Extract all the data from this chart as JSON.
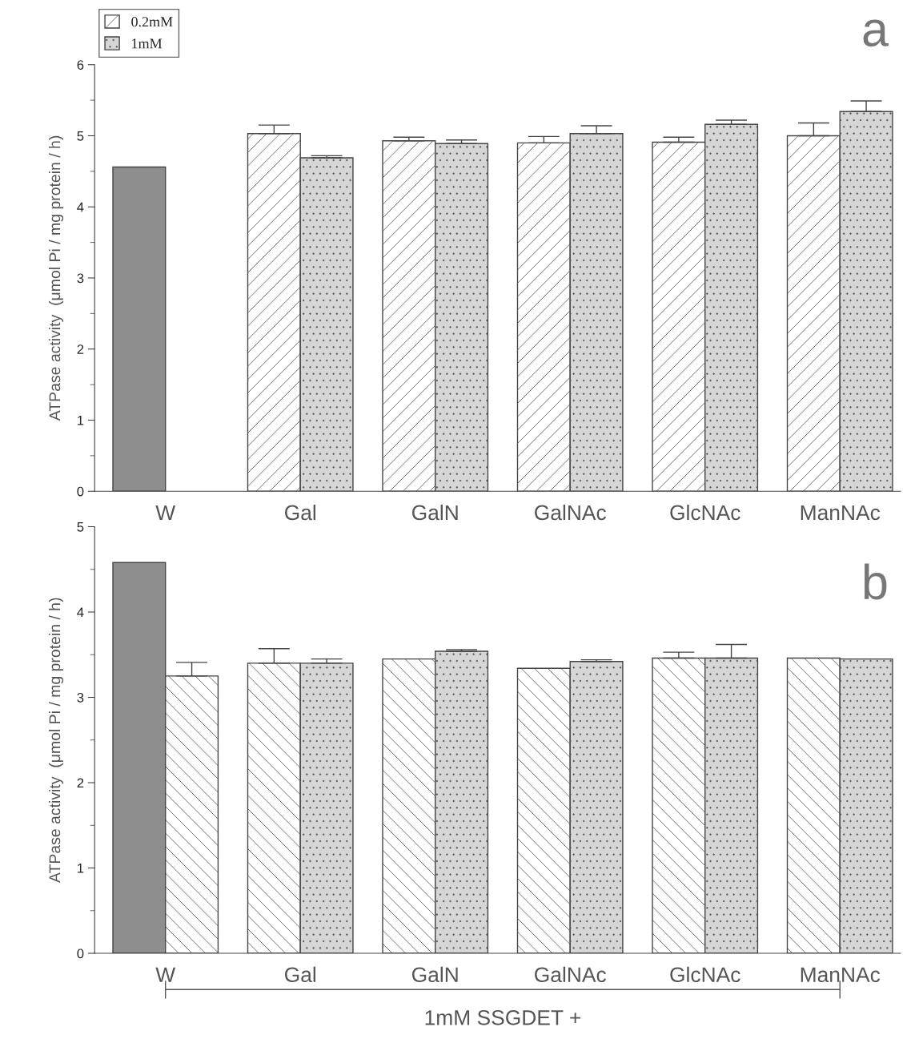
{
  "chart_data": [
    {
      "type": "bar",
      "categories": [
        "W",
        "Gal",
        "GalN",
        "GalNAc",
        "GlcNAc",
        "ManNAc"
      ],
      "ylabel": "ATPase activity  (μmol Pi / mg protein / h)",
      "ylim": [
        0,
        6
      ],
      "yticks": [
        0,
        1,
        2,
        3,
        4,
        5,
        6
      ],
      "legend": "top left",
      "grid": false,
      "series": [
        {
          "color": "#8e8e8e",
          "values": [
            4.56,
            null,
            null,
            null,
            null,
            null
          ]
        },
        {
          "name": "0.2mM",
          "color": "#ffffff",
          "values": [
            null,
            5.03,
            4.93,
            4.9,
            4.91,
            5.0
          ],
          "errors": [
            null,
            [
              5.03,
              5.15
            ],
            [
              4.93,
              4.98
            ],
            [
              4.9,
              4.99
            ],
            [
              4.91,
              4.98
            ],
            [
              5.0,
              5.18
            ]
          ]
        },
        {
          "name": "1mM",
          "color": "#d6d6d6",
          "values": [
            null,
            4.69,
            4.89,
            5.03,
            5.16,
            5.34
          ],
          "errors": [
            null,
            [
              4.69,
              4.72
            ],
            [
              4.89,
              4.94
            ],
            [
              5.03,
              5.14
            ],
            [
              5.16,
              5.22
            ],
            [
              5.34,
              5.49
            ]
          ]
        }
      ],
      "annotations": [
        "a"
      ]
    },
    {
      "type": "bar",
      "categories": [
        "W",
        "Gal",
        "GalN",
        "GalNAc",
        "GlcNAc",
        "ManNAc"
      ],
      "ylabel": "ATPase activity  (μmol Pi / mg protein / h)",
      "ylim": [
        0,
        5
      ],
      "yticks": [
        0,
        1,
        2,
        3,
        4,
        5
      ],
      "grid": false,
      "series": [
        {
          "color": "#8e8e8e",
          "values": [
            4.58,
            null,
            null,
            null,
            null,
            null
          ]
        },
        {
          "color": "#ffffff",
          "values": [
            3.25,
            3.4,
            3.45,
            3.34,
            3.46,
            3.46
          ],
          "errors": [
            [
              3.25,
              3.41
            ],
            [
              3.4,
              3.57
            ],
            null,
            null,
            [
              3.46,
              3.53
            ],
            null
          ]
        },
        {
          "color": "#d6d6d6",
          "values": [
            null,
            3.4,
            3.54,
            3.42,
            3.46,
            3.45
          ],
          "errors": [
            null,
            [
              3.4,
              3.45
            ],
            [
              3.54,
              3.56
            ],
            [
              3.42,
              3.44
            ],
            [
              3.46,
              3.62
            ],
            null
          ]
        }
      ],
      "annotations": [
        "b",
        "1mM SSGDET +"
      ]
    }
  ]
}
